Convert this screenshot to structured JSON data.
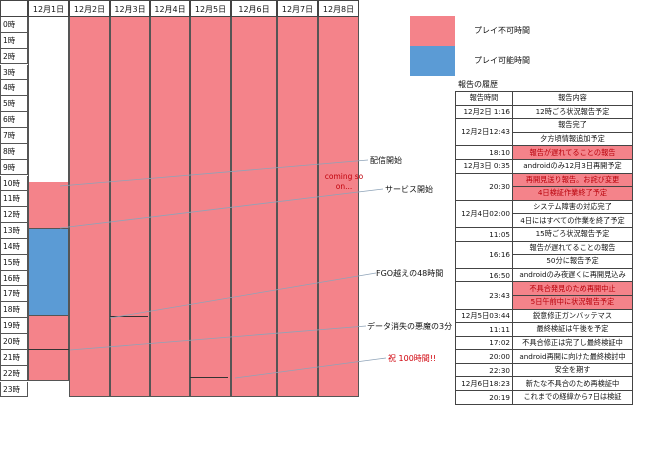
{
  "dates": [
    "12月1日",
    "12月2日",
    "12月3日",
    "12月4日",
    "12月5日",
    "12月6日",
    "12月7日",
    "12月8日"
  ],
  "hours": [
    "0時",
    "1時",
    "2時",
    "3時",
    "4時",
    "5時",
    "6時",
    "7時",
    "8時",
    "9時",
    "10時",
    "11時",
    "12時",
    "13時",
    "14時",
    "15時",
    "16時",
    "17時",
    "18時",
    "19時",
    "20時",
    "21時",
    "22時",
    "23時"
  ],
  "legend": {
    "unplayable": {
      "label": "プレイ不可時間",
      "color": "#f4838a"
    },
    "playable": {
      "label": "プレイ可能時間",
      "color": "#5b9bd5"
    }
  },
  "coming_soon": "coming so on...",
  "notes": {
    "start_delivery": "配信開始",
    "start_service": "サービス開始",
    "fgo": "FGO越えの48時間",
    "data_loss": "データ消失の悪魔の3分",
    "celebrate": "祝 100時間!!"
  },
  "history": {
    "title": "報告の履歴",
    "col_time": "報告時間",
    "col_content": "報告内容",
    "rows": [
      {
        "time": "12月2日  1:16",
        "lines": [
          "12時ごろ状況報告予定"
        ],
        "red": [
          false
        ]
      },
      {
        "time": "12月2日12:43",
        "lines": [
          "報告完了",
          "夕方頃情報追加予定"
        ],
        "red": [
          false,
          false
        ]
      },
      {
        "time": "18:10",
        "lines": [
          "報告が遅れてることの報告"
        ],
        "red": [
          true
        ]
      },
      {
        "time": "12月3日  0:35",
        "lines": [
          "androidのみ12月3日再開予定"
        ],
        "red": [
          false
        ]
      },
      {
        "time": "20:30",
        "lines": [
          "再開見送り報告。お詫び変更",
          "4日検証作業終了予定"
        ],
        "red": [
          true,
          true
        ]
      },
      {
        "time": "12月4日02:00",
        "lines": [
          "システム障害の対応完了",
          "4日にはすべての作業を終了予定"
        ],
        "red": [
          false,
          false
        ]
      },
      {
        "time": "11:05",
        "lines": [
          "15時ごろ状況報告予定"
        ],
        "red": [
          false
        ]
      },
      {
        "time": "16:16",
        "lines": [
          "報告が遅れてることの報告",
          "50分に報告予定"
        ],
        "red": [
          false,
          false
        ]
      },
      {
        "time": "16:50",
        "lines": [
          "androidのみ夜遅くに再開見込み"
        ],
        "red": [
          false
        ]
      },
      {
        "time": "23:43",
        "lines": [
          "不具合発見のため再開中止",
          "5日午前中に状況報告予定"
        ],
        "red": [
          true,
          true
        ]
      },
      {
        "time": "12月5日03:44",
        "lines": [
          "鋭意修正ガンバッテマス"
        ],
        "red": [
          false
        ]
      },
      {
        "time": "11:11",
        "lines": [
          "最終検証は午後を予定"
        ],
        "red": [
          false
        ]
      },
      {
        "time": "17:02",
        "lines": [
          "不具合修正は完了し最終検証中"
        ],
        "red": [
          false
        ]
      },
      {
        "time": "20:00",
        "lines": [
          "android再開に向けた最終検討中"
        ],
        "red": [
          false
        ]
      },
      {
        "time": "22:30",
        "lines": [
          "安全を期す"
        ],
        "red": [
          false
        ]
      },
      {
        "time": "12月6日18:23",
        "lines": [
          "新たな不具合のため再検証中"
        ],
        "red": [
          false
        ]
      },
      {
        "time": "20:19",
        "lines": [
          "これまでの経緯から7日は検証"
        ],
        "red": [
          false
        ]
      }
    ]
  }
}
